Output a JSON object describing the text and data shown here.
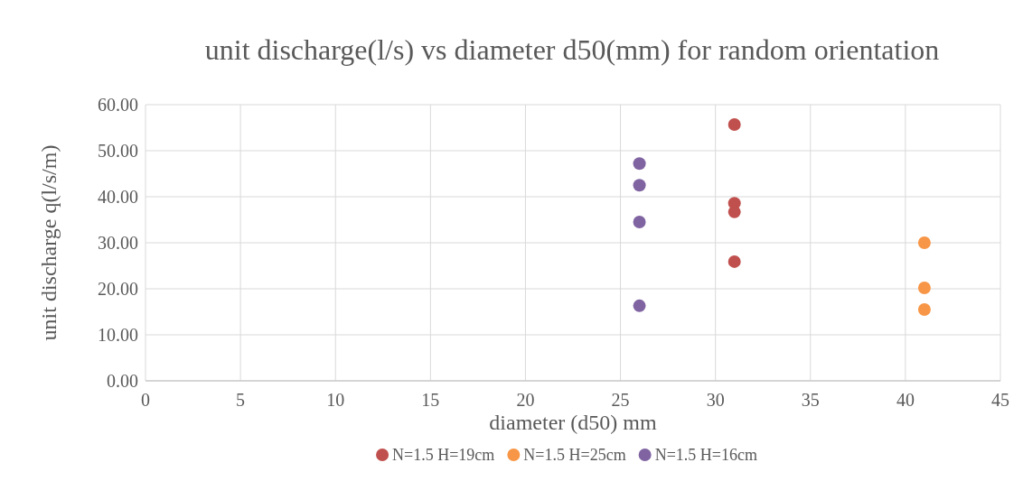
{
  "chart_data": {
    "type": "scatter",
    "title": "unit discharge(l/s) vs diameter d50(mm) for random orientation",
    "xlabel": "diameter (d50) mm",
    "ylabel": "unit discharge q(l/s/m)",
    "xlim": [
      0,
      45
    ],
    "xticks": [
      0,
      5,
      10,
      15,
      20,
      25,
      30,
      35,
      40,
      45
    ],
    "ylim": [
      0,
      60
    ],
    "yticks": [
      {
        "value": 0,
        "label": "0.00"
      },
      {
        "value": 10,
        "label": "10.00"
      },
      {
        "value": 20,
        "label": "20.00"
      },
      {
        "value": 30,
        "label": "30.00"
      },
      {
        "value": 40,
        "label": "40.00"
      },
      {
        "value": 50,
        "label": "50.00"
      },
      {
        "value": 60,
        "label": "60.00"
      }
    ],
    "grid": true,
    "legend": "bottom",
    "marker": "circle",
    "series": [
      {
        "name": "N=1.5 H=19cm",
        "color": "#c0504d",
        "x": [
          31,
          31,
          31,
          31
        ],
        "values": [
          55.7,
          38.6,
          36.7,
          25.9
        ]
      },
      {
        "name": "N=1.5 H=25cm",
        "color": "#f79646",
        "x": [
          41,
          41,
          41
        ],
        "values": [
          30.0,
          20.2,
          15.5
        ]
      },
      {
        "name": "N=1.5 H=16cm",
        "color": "#8064a2",
        "x": [
          26,
          26,
          26,
          26
        ],
        "values": [
          47.2,
          42.5,
          34.5,
          16.3
        ]
      }
    ]
  }
}
